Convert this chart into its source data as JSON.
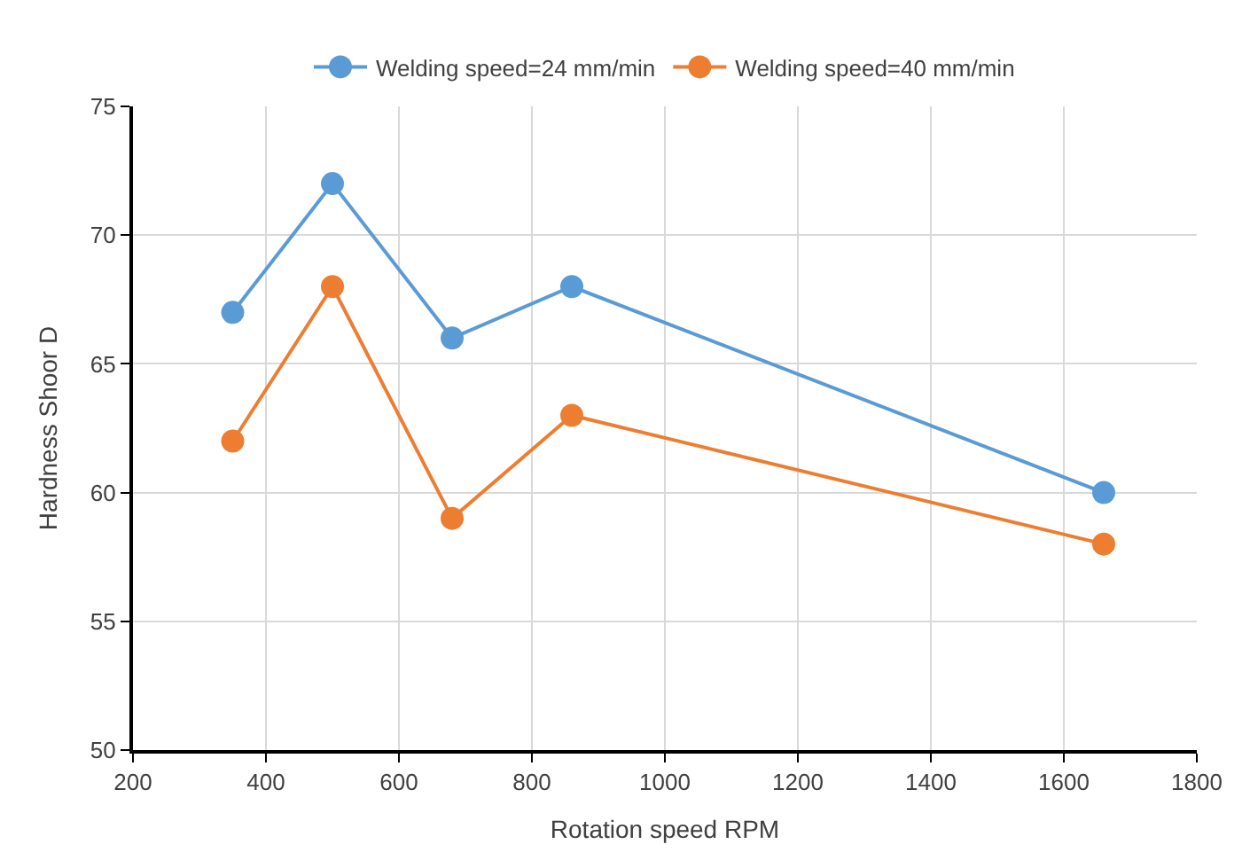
{
  "chart_data": {
    "type": "line",
    "xlabel": "Rotation speed RPM",
    "ylabel": "Hardness Shoor D",
    "x": [
      350,
      500,
      680,
      860,
      1660
    ],
    "series": [
      {
        "name": "Welding speed=24 mm/min",
        "color": "#5b9bd5",
        "values": [
          67,
          72,
          66,
          68,
          60
        ]
      },
      {
        "name": "Welding speed=40 mm/min",
        "color": "#ed7d31",
        "values": [
          62,
          68,
          59,
          63,
          58
        ]
      }
    ],
    "xlim": [
      200,
      1800
    ],
    "xticks": [
      200,
      400,
      600,
      800,
      1000,
      1200,
      1400,
      1600,
      1800
    ],
    "ylim": [
      50,
      75
    ],
    "yticks": [
      50,
      55,
      60,
      65,
      70,
      75
    ],
    "grid": true,
    "legend": "top",
    "marker": "circle",
    "line_style": "solid"
  }
}
